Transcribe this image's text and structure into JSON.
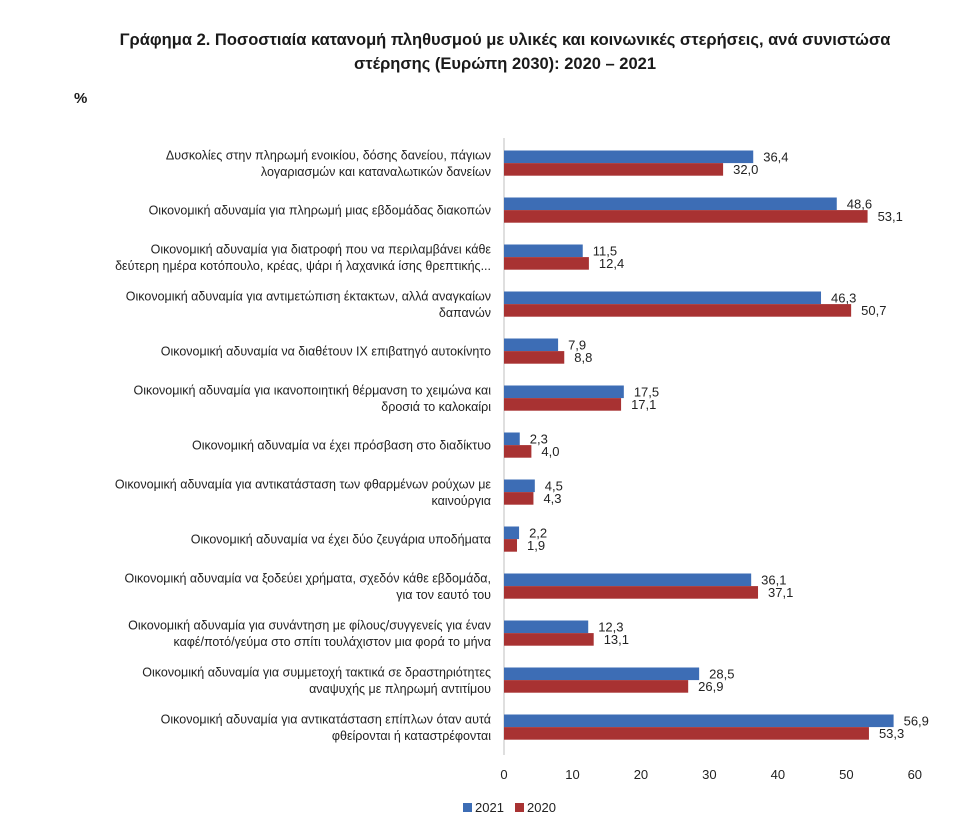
{
  "title_lines": [
    "Γράφημα 2. Ποσοστιαία κατανομή πληθυσμού με υλικές και κοινωνικές στερήσεις, ανά συνιστώσα",
    "στέρησης (Ευρώπη 2030): 2020 – 2021"
  ],
  "unit": "%",
  "colors": {
    "s2021": "#3d6db5",
    "s2020": "#a83232",
    "axis": "#bfbfbf"
  },
  "chart_data": {
    "type": "bar",
    "orientation": "horizontal",
    "title": "Γράφημα 2. Ποσοστιαία κατανομή πληθυσμού με υλικές και κοινωνικές στερήσεις, ανά συνιστώσα στέρησης (Ευρώπη 2030): 2020 – 2021",
    "xlabel": "",
    "ylabel": "%",
    "xlim": [
      0,
      60
    ],
    "ticks": [
      0,
      10,
      20,
      30,
      40,
      50,
      60
    ],
    "legend_position": "bottom",
    "categories": [
      [
        "Δυσκολίες στην πληρωμή ενοικίου, δόσης δανείου, πάγιων",
        "λογαριασμών και καταναλωτικών δανείων"
      ],
      [
        "Οικονομική αδυναμία για πληρωμή μιας εβδομάδας διακοπών"
      ],
      [
        "Οικονομική αδυναμία για διατροφή που να περιλαμβάνει κάθε",
        "δεύτερη ημέρα κοτόπουλο, κρέας, ψάρι ή λαχανικά ίσης θρεπτικής..."
      ],
      [
        "Οικονομική αδυναμία για αντιμετώπιση έκτακτων, αλλά αναγκαίων",
        "δαπανών"
      ],
      [
        "Οικονομική αδυναμία να διαθέτουν ΙΧ επιβατηγό αυτοκίνητο"
      ],
      [
        "Οικονομική αδυναμία για ικανοποιητική θέρμανση το χειμώνα και",
        "δροσιά το καλοκαίρι"
      ],
      [
        "Οικονομική αδυναμία να έχει πρόσβαση στο διαδίκτυο"
      ],
      [
        "Οικονομική αδυναμία για αντικατάσταση των φθαρμένων ρούχων με",
        "καινούργια"
      ],
      [
        "Οικονομική αδυναμία να έχει δύο ζευγάρια υποδήματα"
      ],
      [
        "Οικονομική αδυναμία να ξοδεύει χρήματα, σχεδόν κάθε εβδομάδα,",
        "για τον εαυτό του"
      ],
      [
        "Οικονομική αδυναμία για συνάντηση με φίλους/συγγενείς για έναν",
        "καφέ/ποτό/γεύμα στο σπίτι τουλάχιστον μια φορά το μήνα"
      ],
      [
        "Οικονομική αδυναμία για συμμετοχή τακτικά σε δραστηριότητες",
        "αναψυχής με πληρωμή αντιτίμου"
      ],
      [
        "Οικονομική αδυναμία για αντικατάσταση επίπλων όταν αυτά",
        "φθείρονται ή καταστρέφονται"
      ]
    ],
    "series": [
      {
        "name": "2021",
        "values": [
          36.4,
          48.6,
          11.5,
          46.3,
          7.9,
          17.5,
          2.3,
          4.5,
          2.2,
          36.1,
          12.3,
          28.5,
          56.9
        ],
        "labels": [
          "36,4",
          "48,6",
          "11,5",
          "46,3",
          "7,9",
          "17,5",
          "2,3",
          "4,5",
          "2,2",
          "36,1",
          "12,3",
          "28,5",
          "56,9"
        ]
      },
      {
        "name": "2020",
        "values": [
          32.0,
          53.1,
          12.4,
          50.7,
          8.8,
          17.1,
          4.0,
          4.3,
          1.9,
          37.1,
          13.1,
          26.9,
          53.3
        ],
        "labels": [
          "32,0",
          "53,1",
          "12,4",
          "50,7",
          "8,8",
          "17,1",
          "4,0",
          "4,3",
          "1,9",
          "37,1",
          "13,1",
          "26,9",
          "53,3"
        ]
      }
    ]
  }
}
